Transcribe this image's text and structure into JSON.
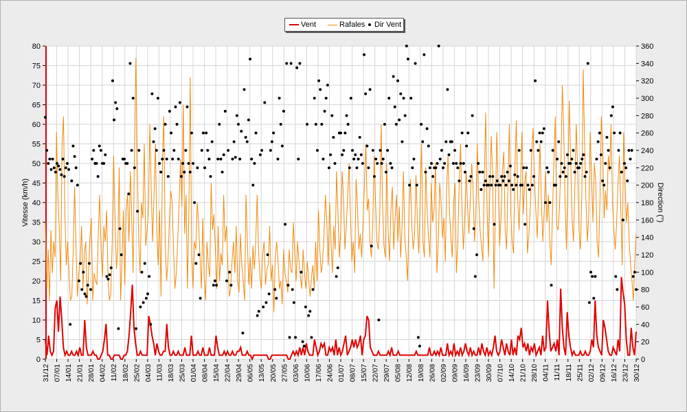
{
  "colors": {
    "wind": "#e00000",
    "gusts": "#f28a0a",
    "direction": "#000000",
    "plot_bg": "#ffffff",
    "grid": "#d4d4d4"
  },
  "legend": {
    "wind": "Vent",
    "gusts": "Rafales",
    "direction": "Dir Vent"
  },
  "chart_data": {
    "type": "line",
    "title": "",
    "xlabel": "",
    "ylabel": "Vitesse (km/h)",
    "y2label": "Direction (°)",
    "ylim": [
      0,
      80
    ],
    "y2lim": [
      0,
      360
    ],
    "yticks": [
      0,
      5,
      10,
      15,
      20,
      25,
      30,
      35,
      40,
      45,
      50,
      55,
      60,
      65,
      70,
      75,
      80
    ],
    "y2ticks": [
      0,
      20,
      40,
      60,
      80,
      100,
      120,
      140,
      160,
      180,
      200,
      220,
      240,
      260,
      280,
      300,
      320,
      340,
      360
    ],
    "grid": true,
    "legend_position": "top-center",
    "x_tick_labels": [
      "31/12",
      "07/01",
      "14/01",
      "21/01",
      "28/01",
      "04/02",
      "11/02",
      "18/02",
      "25/02",
      "04/03",
      "11/03",
      "18/03",
      "25/03",
      "01/04",
      "08/04",
      "15/04",
      "22/04",
      "29/04",
      "06/05",
      "13/05",
      "20/05",
      "27/05",
      "03/06",
      "10/06",
      "17/06",
      "24/06",
      "01/07",
      "08/07",
      "15/07",
      "22/07",
      "29/07",
      "05/08",
      "12/08",
      "19/08",
      "26/08",
      "02/09",
      "09/09",
      "16/09",
      "23/09",
      "30/09",
      "07/10",
      "14/10",
      "21/10",
      "28/10",
      "04/11",
      "11/11",
      "18/11",
      "25/11",
      "02/12",
      "09/12",
      "16/12",
      "23/12",
      "30/12"
    ],
    "series": [
      {
        "name": "Vent",
        "axis": "left",
        "values": [
          5,
          1,
          6,
          2,
          1,
          2,
          13,
          15,
          7,
          16,
          10,
          3,
          1,
          2,
          1,
          1,
          2,
          1,
          1,
          2,
          1,
          3,
          1,
          1,
          10,
          3,
          1,
          1,
          1,
          2,
          1,
          1,
          0,
          0,
          1,
          2,
          5,
          9,
          1,
          1,
          0,
          0,
          1,
          1,
          1,
          1,
          0,
          0,
          1,
          1,
          2,
          6,
          12,
          19,
          8,
          4,
          1,
          1,
          2,
          1,
          1,
          1,
          1,
          11,
          9,
          6,
          4,
          1,
          4,
          2,
          1,
          1,
          2,
          2,
          9,
          3,
          1,
          1,
          2,
          1,
          1,
          2,
          1,
          1,
          1,
          3,
          1,
          1,
          1,
          6,
          1,
          1,
          1,
          2,
          1,
          1,
          3,
          1,
          1,
          1,
          3,
          1,
          1,
          1,
          6,
          3,
          1,
          1,
          1,
          2,
          1,
          2,
          1,
          1,
          2,
          1,
          1,
          2,
          2,
          3,
          1,
          1,
          1,
          2,
          1,
          1,
          0,
          1,
          1,
          1,
          1,
          1,
          1,
          1,
          1,
          1,
          0,
          0,
          1,
          1,
          1,
          1,
          1,
          1,
          1,
          1,
          1,
          1,
          0,
          0,
          1,
          2,
          1,
          2,
          1,
          3,
          1,
          3,
          1,
          4,
          2,
          1,
          1,
          1,
          5,
          3,
          1,
          2,
          4,
          3,
          4,
          1,
          1,
          3,
          2,
          3,
          1,
          5,
          1,
          3,
          1,
          2,
          4,
          6,
          1,
          2,
          3,
          5,
          3,
          5,
          3,
          4,
          6,
          1,
          5,
          6,
          11,
          10,
          3,
          2,
          1,
          1,
          1,
          2,
          1,
          1,
          1,
          1,
          1,
          2,
          1,
          3,
          1,
          1,
          1,
          2,
          1,
          1,
          1,
          1,
          1,
          1,
          1,
          1,
          1,
          1,
          2,
          1,
          1,
          1,
          1,
          1,
          1,
          1,
          3,
          1,
          1,
          2,
          1,
          2,
          1,
          3,
          1,
          1,
          1,
          4,
          1,
          2,
          1,
          4,
          1,
          2,
          1,
          3,
          1,
          2,
          4,
          2,
          1,
          3,
          1,
          2,
          1,
          1,
          3,
          1,
          4,
          2,
          1,
          3,
          1,
          2,
          1,
          3,
          6,
          2,
          1,
          2,
          5,
          3,
          1,
          4,
          2,
          1,
          5,
          1,
          3,
          1,
          6,
          5,
          8,
          3,
          4,
          2,
          4,
          1,
          3,
          2,
          4,
          1,
          2,
          3,
          1,
          6,
          2,
          3,
          15,
          7,
          2,
          3,
          4,
          2,
          5,
          1,
          18,
          8,
          3,
          1,
          12,
          6,
          3,
          1,
          2,
          1,
          1,
          1,
          2,
          1,
          1,
          2,
          1,
          1,
          2,
          5,
          3,
          15,
          6,
          3,
          2,
          1,
          10,
          8,
          5,
          2,
          1,
          1,
          3,
          2,
          1,
          5,
          2,
          21,
          17,
          14,
          5,
          1,
          1,
          8,
          3,
          1,
          7
        ]
      },
      {
        "name": "Rafales",
        "axis": "left",
        "values": [
          35,
          18,
          28,
          15,
          33,
          22,
          30,
          26,
          58,
          42,
          33,
          20,
          55,
          62,
          38,
          24,
          30,
          22,
          15,
          16,
          28,
          44,
          29,
          16,
          22,
          25,
          34,
          18,
          27,
          30,
          14,
          22,
          31,
          36,
          15,
          22,
          20,
          19,
          32,
          42,
          28,
          21,
          34,
          30,
          38,
          20,
          15,
          17,
          30,
          52,
          36,
          23,
          28,
          49,
          15,
          25,
          38,
          19,
          38,
          42,
          30,
          48,
          36,
          22,
          55,
          77,
          50,
          30,
          22,
          40,
          36,
          55,
          29,
          33,
          38,
          60,
          43,
          30,
          42,
          55,
          33,
          24,
          38,
          16,
          50,
          62,
          30,
          20,
          25,
          35,
          43,
          40,
          28,
          18,
          22,
          30,
          40,
          51,
          39,
          65,
          32,
          42,
          18,
          38,
          72,
          26,
          18,
          30,
          28,
          40,
          35,
          26,
          18,
          36,
          21,
          15,
          30,
          24,
          21,
          45,
          33,
          37,
          28,
          18,
          34,
          20,
          27,
          24,
          42,
          30,
          34,
          24,
          16,
          18,
          25,
          30,
          22,
          34,
          20,
          17,
          32,
          24,
          20,
          15,
          42,
          30,
          19,
          26,
          18,
          29,
          23,
          30,
          42,
          28,
          21,
          18,
          27,
          30,
          19,
          23,
          24,
          34,
          20,
          24,
          12,
          26,
          30,
          25,
          18,
          20,
          14,
          28,
          22,
          20,
          17,
          28,
          23,
          22,
          35,
          27,
          20,
          30,
          25,
          21,
          18,
          28,
          22,
          18,
          25,
          20,
          16,
          21,
          24,
          18,
          30,
          20,
          38,
          28,
          22,
          25,
          32,
          42,
          35,
          24,
          40,
          30,
          22,
          34,
          28,
          48,
          37,
          26,
          33,
          48,
          41,
          28,
          34,
          42,
          50,
          36,
          25,
          30,
          22,
          46,
          39,
          28,
          32,
          26,
          35,
          45,
          55,
          38,
          41,
          30,
          26,
          35,
          52,
          40,
          30,
          28,
          37,
          60,
          40,
          29,
          26,
          50,
          33,
          25,
          38,
          44,
          28,
          36,
          42,
          30,
          39,
          26,
          34,
          48,
          31,
          26,
          20,
          38,
          46,
          34,
          28,
          32,
          47,
          35,
          27,
          41,
          55,
          30,
          26,
          49,
          38,
          31,
          26,
          45,
          35,
          38,
          50,
          22,
          30,
          45,
          40,
          31,
          36,
          25,
          44,
          52,
          38,
          31,
          26,
          40,
          45,
          22,
          30,
          45,
          55,
          38,
          28,
          36,
          48,
          39,
          32,
          41,
          50,
          43,
          30,
          38,
          55,
          41,
          33,
          29,
          25,
          45,
          63,
          38,
          26,
          44,
          57,
          47,
          18,
          38,
          58,
          44,
          29,
          36,
          48,
          53,
          33,
          28,
          45,
          60,
          38,
          30,
          27,
          49,
          61,
          41,
          33,
          44,
          58,
          37,
          45,
          48,
          27,
          32,
          38,
          52,
          59,
          46,
          38,
          31,
          43,
          55,
          40,
          30,
          38,
          48,
          35,
          42,
          30,
          24,
          38,
          51,
          62,
          34,
          33,
          39,
          50,
          70,
          59,
          40,
          28,
          46,
          66,
          51,
          36,
          30,
          44,
          60,
          49,
          33,
          28,
          42,
          74,
          55,
          40,
          30,
          37,
          58,
          47,
          35,
          50,
          45,
          30,
          26,
          40,
          62,
          55,
          36,
          43,
          38,
          52,
          48,
          60,
          40,
          33,
          28,
          35,
          45,
          52,
          38,
          24,
          58,
          45,
          35,
          40,
          30,
          24,
          20,
          15,
          25,
          32
        ]
      },
      {
        "name": "Dir Vent",
        "axis": "right",
        "values": [
          278,
          240,
          225,
          230,
          218,
          230,
          220,
          215,
          225,
          222,
          218,
          212,
          230,
          210,
          220,
          225,
          218,
          40,
          205,
          245,
          233,
          220,
          200,
          90,
          110,
          80,
          100,
          75,
          72,
          85,
          110,
          80,
          230,
          240,
          225,
          225,
          210,
          245,
          240,
          225,
          225,
          235,
          95,
          92,
          97,
          105,
          320,
          275,
          295,
          288,
          35,
          150,
          120,
          230,
          230,
          225,
          225,
          190,
          340,
          240,
          300,
          220,
          35,
          170,
          240,
          60,
          100,
          65,
          110,
          70,
          75,
          95,
          40,
          305,
          250,
          265,
          240,
          300,
          225,
          215,
          230,
          240,
          270,
          230,
          210,
          285,
          260,
          230,
          240,
          290,
          270,
          230,
          295,
          210,
          225,
          215,
          240,
          290,
          225,
          215,
          260,
          225,
          180,
          110,
          220,
          120,
          70,
          240,
          260,
          220,
          260,
          240,
          230,
          210,
          250,
          85,
          90,
          85,
          230,
          270,
          230,
          215,
          235,
          285,
          90,
          240,
          100,
          85,
          230,
          250,
          232,
          280,
          270,
          230,
          262,
          30,
          310,
          255,
          250,
          275,
          345,
          230,
          200,
          225,
          260,
          50,
          55,
          235,
          240,
          60,
          295,
          65,
          120,
          75,
          240,
          250,
          260,
          80,
          70,
          230,
          300,
          270,
          245,
          285,
          155,
          340,
          85,
          25,
          340,
          80,
          65,
          25,
          335,
          230,
          340,
          100,
          20,
          15,
          60,
          270,
          50,
          55,
          25,
          80,
          300,
          270,
          240,
          320,
          310,
          270,
          230,
          285,
          300,
          315,
          220,
          235,
          280,
          255,
          225,
          95,
          105,
          260,
          260,
          235,
          240,
          260,
          280,
          270,
          220,
          300,
          240,
          230,
          235,
          220,
          230,
          255,
          235,
          225,
          350,
          305,
          245,
          220,
          310,
          130,
          240,
          210,
          230,
          225,
          45,
          240,
          225,
          230,
          270,
          215,
          240,
          300,
          225,
          220,
          325,
          290,
          270,
          320,
          275,
          305,
          250,
          300,
          280,
          360,
          345,
          200,
          300,
          220,
          230,
          340,
          200,
          25,
          15,
          270,
          250,
          350,
          215,
          265,
          245,
          220,
          225,
          210,
          220,
          220,
          225,
          360,
          230,
          240,
          220,
          225,
          250,
          310,
          235,
          250,
          250,
          225,
          240,
          225,
          220,
          205,
          225,
          260,
          225,
          215,
          245,
          260,
          205,
          210,
          280,
          150,
          95,
          120,
          225,
          215,
          195,
          215,
          200,
          205,
          200,
          200,
          210,
          200,
          210,
          155,
          200,
          205,
          200,
          200,
          210,
          205,
          210,
          200,
          215,
          205,
          222,
          200,
          195,
          212,
          200,
          210,
          240,
          200,
          200,
          220,
          155,
          220,
          200,
          195,
          240,
          200,
          210,
          320,
          250,
          240,
          260,
          250,
          260,
          265,
          180,
          220,
          215,
          180,
          85,
          240,
          200,
          200,
          230,
          250,
          210,
          225,
          215,
          220,
          210,
          235,
          225,
          225,
          230,
          240,
          215,
          225,
          220,
          220,
          225,
          230,
          235,
          210,
          215,
          340,
          65,
          100,
          95,
          70,
          95,
          230,
          250,
          260,
          235,
          205,
          200,
          225,
          255,
          240,
          220,
          280,
          290,
          260,
          95,
          80,
          240,
          260,
          215,
          160,
          225,
          220,
          205,
          240,
          230,
          240,
          95,
          100,
          80
        ]
      }
    ]
  }
}
